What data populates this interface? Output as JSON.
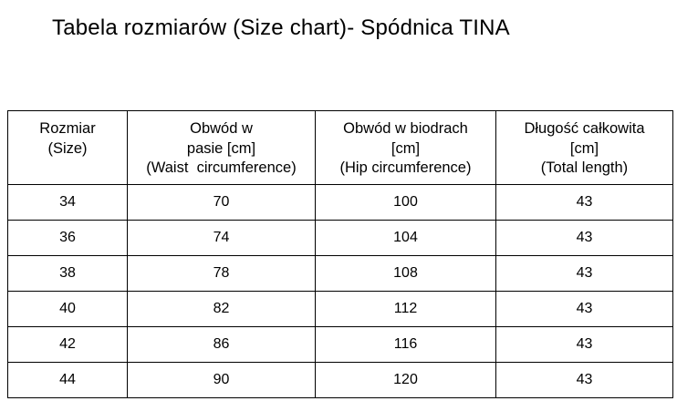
{
  "page": {
    "title": "Tabela rozmiarów (Size chart)- Spódnica TINA"
  },
  "size_chart": {
    "columns": [
      {
        "label": "Rozmiar\n(Size)"
      },
      {
        "label": "Obwód w\npasie [cm]\n(Waist  circumference)"
      },
      {
        "label": "Obwód w biodrach\n[cm]\n(Hip circumference)"
      },
      {
        "label": "Długość całkowita\n[cm]\n(Total length)"
      }
    ],
    "rows": [
      [
        "34",
        "70",
        "100",
        "43"
      ],
      [
        "36",
        "74",
        "104",
        "43"
      ],
      [
        "38",
        "78",
        "108",
        "43"
      ],
      [
        "40",
        "82",
        "112",
        "43"
      ],
      [
        "42",
        "86",
        "116",
        "43"
      ],
      [
        "44",
        "90",
        "120",
        "43"
      ]
    ],
    "colors": {
      "border": "#000000",
      "text": "#000000",
      "background": "#ffffff"
    }
  }
}
